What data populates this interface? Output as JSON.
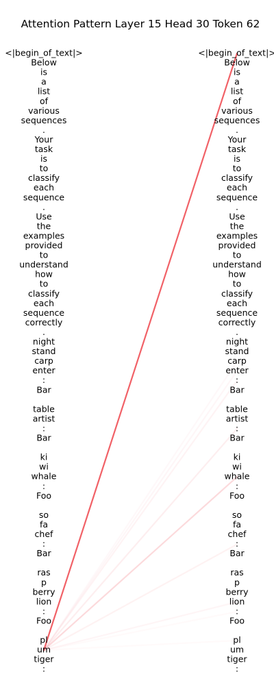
{
  "chart_data": {
    "type": "attention",
    "title": "Attention Pattern Layer 15 Head 30 Token 62",
    "layer": 15,
    "head": 30,
    "query_token_index": 62,
    "line_color": "#f0585f",
    "tokens": [
      "<|begin_of_text|>",
      "Below",
      "is",
      "a",
      "list",
      "of",
      "various",
      "sequences",
      ".",
      "Your",
      "task",
      "is",
      "to",
      "classify",
      "each",
      "sequence",
      ".",
      "Use",
      "the",
      "examples",
      "provided",
      "to",
      "understand",
      "how",
      "to",
      "classify",
      "each",
      "sequence",
      "correctly",
      ".",
      "night",
      "stand",
      "carp",
      "enter",
      ":",
      "Bar",
      "",
      "table",
      "artist",
      ":",
      "Bar",
      "",
      "ki",
      "wi",
      "whale",
      ":",
      "Foo",
      "",
      "so",
      "fa",
      "chef",
      ":",
      "Bar",
      "",
      "ras",
      "p",
      "berry",
      "lion",
      ":",
      "Foo",
      "",
      "pl",
      "um",
      "tiger",
      ":"
    ],
    "attention_edges": [
      {
        "source": 62,
        "target": 0,
        "weight": 0.95
      },
      {
        "source": 62,
        "target": 44,
        "weight": 0.22
      },
      {
        "source": 62,
        "target": 39,
        "weight": 0.1
      },
      {
        "source": 62,
        "target": 34,
        "weight": 0.07
      },
      {
        "source": 62,
        "target": 33,
        "weight": 0.05
      },
      {
        "source": 62,
        "target": 32,
        "weight": 0.04
      },
      {
        "source": 62,
        "target": 51,
        "weight": 0.08
      },
      {
        "source": 62,
        "target": 57,
        "weight": 0.06
      },
      {
        "source": 62,
        "target": 58,
        "weight": 0.03
      },
      {
        "source": 62,
        "target": 61,
        "weight": 0.03
      }
    ]
  }
}
